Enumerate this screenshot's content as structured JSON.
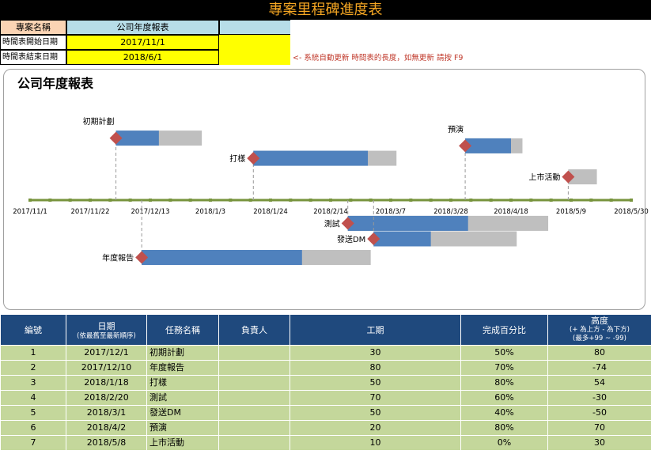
{
  "title": "專案里程碑進度表",
  "header": {
    "project_name_label": "專案名稱",
    "project_name_value": "公司年度報表",
    "start_label": "時間表開始日期",
    "start_value": "2017/11/1",
    "end_label": "時間表結束日期",
    "end_value": "2018/6/1",
    "hint": "<-   系統自動更新 時間表的長度，如無更新 請按 F9"
  },
  "chart": {
    "title": "公司年度報表",
    "axis_ticks": [
      "2017/11/1",
      "2017/11/22",
      "2017/12/13",
      "2018/1/3",
      "2018/1/24",
      "2018/2/14",
      "2018/3/7",
      "2018/3/28",
      "2018/4/18",
      "2018/5/9",
      "2018/5/30"
    ]
  },
  "chart_data": {
    "type": "timeline",
    "title": "公司年度報表",
    "x_start": "2017/11/1",
    "x_end": "2018/5/30",
    "tasks": [
      {
        "name": "初期計劃",
        "start": "2017/12/1",
        "duration": 30,
        "complete": 0.5,
        "height": 80
      },
      {
        "name": "年度報告",
        "start": "2017/12/10",
        "duration": 80,
        "complete": 0.7,
        "height": -74
      },
      {
        "name": "打樣",
        "start": "2018/1/18",
        "duration": 50,
        "complete": 0.8,
        "height": 54
      },
      {
        "name": "測試",
        "start": "2018/2/20",
        "duration": 70,
        "complete": 0.6,
        "height": -30
      },
      {
        "name": "發送DM",
        "start": "2018/3/1",
        "duration": 50,
        "complete": 0.4,
        "height": -50
      },
      {
        "name": "預演",
        "start": "2018/4/2",
        "duration": 20,
        "complete": 0.8,
        "height": 70
      },
      {
        "name": "上市活動",
        "start": "2018/5/8",
        "duration": 10,
        "complete": 0.0,
        "height": 30
      }
    ],
    "colors": {
      "done": "#4f81bd",
      "remaining": "#bfbfbf",
      "milestone": "#c0504d",
      "axis": "#77933c"
    }
  },
  "table": {
    "headers": {
      "id": "編號",
      "date": "日期",
      "date_sub": "(依最舊至最新順序)",
      "task": "任務名稱",
      "owner": "負責人",
      "duration": "工期",
      "percent": "完成百分比",
      "height": "高度",
      "height_sub1": "(+ 為上方 - 為下方)",
      "height_sub2": "(最多+99 ~ -99)"
    },
    "rows": [
      {
        "id": "1",
        "date": "2017/12/1",
        "task": "初期計劃",
        "owner": "",
        "duration": "30",
        "percent": "50%",
        "height": "80"
      },
      {
        "id": "2",
        "date": "2017/12/10",
        "task": "年度報告",
        "owner": "",
        "duration": "80",
        "percent": "70%",
        "height": "-74"
      },
      {
        "id": "3",
        "date": "2018/1/18",
        "task": "打樣",
        "owner": "",
        "duration": "50",
        "percent": "80%",
        "height": "54"
      },
      {
        "id": "4",
        "date": "2018/2/20",
        "task": "測試",
        "owner": "",
        "duration": "70",
        "percent": "60%",
        "height": "-30"
      },
      {
        "id": "5",
        "date": "2018/3/1",
        "task": "發送DM",
        "owner": "",
        "duration": "50",
        "percent": "40%",
        "height": "-50"
      },
      {
        "id": "6",
        "date": "2018/4/2",
        "task": "預演",
        "owner": "",
        "duration": "20",
        "percent": "80%",
        "height": "70"
      },
      {
        "id": "7",
        "date": "2018/5/8",
        "task": "上市活動",
        "owner": "",
        "duration": "10",
        "percent": "0%",
        "height": "30"
      }
    ]
  }
}
